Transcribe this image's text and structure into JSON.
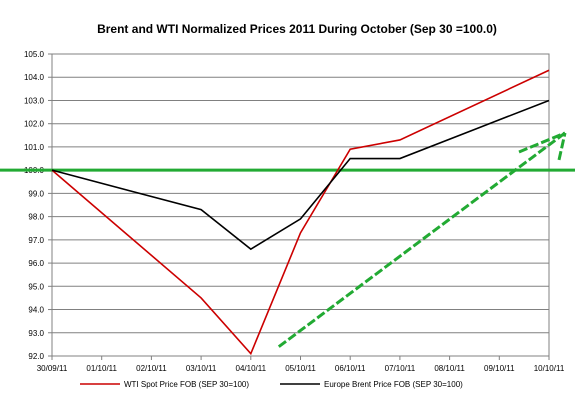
{
  "chart_data": {
    "type": "line",
    "title": "Brent and WTI Normalized Prices 2011 During October  (Sep 30 =100.0)",
    "xlabel": "",
    "ylabel": "",
    "categories": [
      "30/09/11",
      "01/10/11",
      "02/10/11",
      "03/10/11",
      "04/10/11",
      "05/10/11",
      "06/10/11",
      "07/10/11",
      "08/10/11",
      "09/10/11",
      "10/10/11"
    ],
    "ylim": [
      92.0,
      105.0
    ],
    "yticks": [
      "92.0",
      "93.0",
      "94.0",
      "95.0",
      "96.0",
      "97.0",
      "98.0",
      "99.0",
      "100.0",
      "101.0",
      "102.0",
      "103.0",
      "104.0",
      "105.0"
    ],
    "grid": true,
    "legend_position": "bottom",
    "series": [
      {
        "name": "WTI Spot Price FOB (SEP 30=100)",
        "color": "#cc0000",
        "points": [
          {
            "x": "30/09/11",
            "y": 100.0
          },
          {
            "x": "03/10/11",
            "y": 94.5
          },
          {
            "x": "04/10/11",
            "y": 92.1
          },
          {
            "x": "05/10/11",
            "y": 97.3
          },
          {
            "x": "06/10/11",
            "y": 100.9
          },
          {
            "x": "07/10/11",
            "y": 101.3
          },
          {
            "x": "10/10/11",
            "y": 104.3
          }
        ]
      },
      {
        "name": "Europe Brent Price FOB (SEP 30=100)",
        "color": "#000000",
        "points": [
          {
            "x": "30/09/11",
            "y": 100.0
          },
          {
            "x": "03/10/11",
            "y": 98.3
          },
          {
            "x": "04/10/11",
            "y": 96.6
          },
          {
            "x": "05/10/11",
            "y": 97.9
          },
          {
            "x": "06/10/11",
            "y": 100.5
          },
          {
            "x": "07/10/11",
            "y": 100.5
          },
          {
            "x": "10/10/11",
            "y": 103.0
          }
        ]
      }
    ],
    "annotations": [
      {
        "kind": "reference-line",
        "y": 100.0,
        "color": "#22aa33"
      },
      {
        "kind": "trend-arrow",
        "from": {
          "x": "04/10/11",
          "y": 92.4
        },
        "to": {
          "x": "10/10/11",
          "y": 101.6
        },
        "color": "#22aa33"
      }
    ]
  }
}
